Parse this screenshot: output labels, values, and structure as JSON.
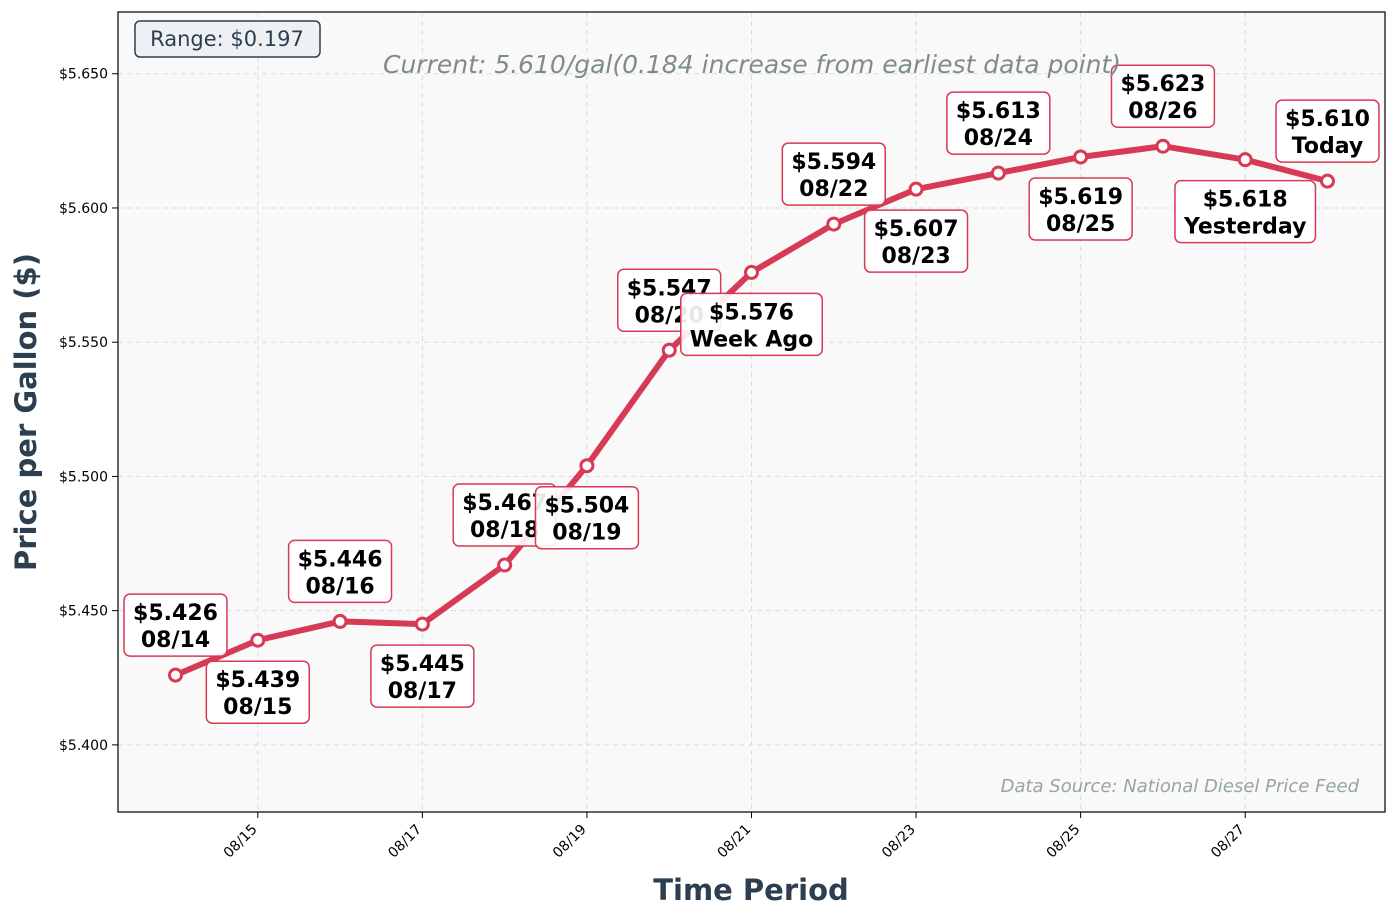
{
  "colors": {
    "line": "#d63a55",
    "marker_fill": "#ffffff",
    "plot_bg": "#f9f9fa",
    "axis_title": "#2c3e50",
    "annotation_border": "#d63a55",
    "grid": "#dddddd"
  },
  "chart_data": {
    "type": "line",
    "title": "",
    "xlabel": "Time Period",
    "ylabel": "Price per Gallon ($)",
    "ylim": [
      5.375,
      5.673
    ],
    "grid": true,
    "y_ticks": [
      "$5.400",
      "$5.450",
      "$5.500",
      "$5.550",
      "$5.600",
      "$5.650"
    ],
    "y_tick_values": [
      5.4,
      5.45,
      5.5,
      5.55,
      5.6,
      5.65
    ],
    "x_ticks": [
      "08/15",
      "08/17",
      "08/19",
      "08/21",
      "08/23",
      "08/25",
      "08/27"
    ],
    "x_tick_indices": [
      1,
      3,
      5,
      7,
      9,
      11,
      13
    ],
    "series": [
      {
        "points": [
          {
            "date": "08/14",
            "value": 5.426,
            "label": "$5.426\n08/14",
            "pos": "above"
          },
          {
            "date": "08/15",
            "value": 5.439,
            "label": "$5.439\n08/15",
            "pos": "below"
          },
          {
            "date": "08/16",
            "value": 5.446,
            "label": "$5.446\n08/16",
            "pos": "above"
          },
          {
            "date": "08/17",
            "value": 5.445,
            "label": "$5.445\n08/17",
            "pos": "below"
          },
          {
            "date": "08/18",
            "value": 5.467,
            "label": "$5.467\n08/18",
            "pos": "above"
          },
          {
            "date": "08/19",
            "value": 5.504,
            "label": "$5.504\n08/19",
            "pos": "below"
          },
          {
            "date": "08/20",
            "value": 5.547,
            "label": "$5.547\n08/20",
            "pos": "above"
          },
          {
            "date": "08/21",
            "value": 5.576,
            "label": "$5.576\nWeek Ago",
            "pos": "below"
          },
          {
            "date": "08/22",
            "value": 5.594,
            "label": "$5.594\n08/22",
            "pos": "above"
          },
          {
            "date": "08/23",
            "value": 5.607,
            "label": "$5.607\n08/23",
            "pos": "below"
          },
          {
            "date": "08/24",
            "value": 5.613,
            "label": "$5.613\n08/24",
            "pos": "above"
          },
          {
            "date": "08/25",
            "value": 5.619,
            "label": "$5.619\n08/25",
            "pos": "below"
          },
          {
            "date": "08/26",
            "value": 5.623,
            "label": "$5.623\n08/26",
            "pos": "above"
          },
          {
            "date": "08/27",
            "value": 5.618,
            "label": "$5.618\nYesterday",
            "pos": "below"
          },
          {
            "date": "08/28",
            "value": 5.61,
            "label": "$5.610\nToday",
            "pos": "above"
          }
        ]
      }
    ],
    "annotations": {
      "current": "Current: 5.610/gal(0.184 increase from earliest data point)",
      "range": "Range: $0.197",
      "source": "Data Source: National Diesel Price Feed"
    }
  }
}
